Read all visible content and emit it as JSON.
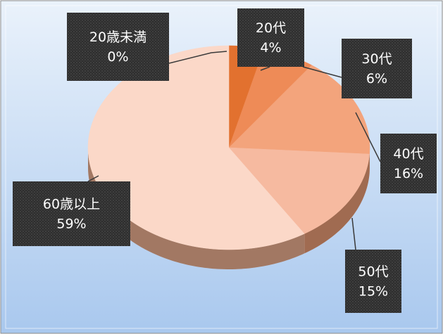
{
  "chart_data": {
    "type": "pie",
    "categories": [
      "20歳未満",
      "20代",
      "30代",
      "40代",
      "50代",
      "60歳以上"
    ],
    "values": [
      0,
      4,
      6,
      16,
      15,
      59
    ],
    "value_labels": [
      "0%",
      "4%",
      "6%",
      "16%",
      "15%",
      "59%"
    ],
    "colors": [
      "#c85a1e",
      "#e2712f",
      "#ee8b57",
      "#f3a47c",
      "#f6baa0",
      "#fbd8c8"
    ]
  }
}
